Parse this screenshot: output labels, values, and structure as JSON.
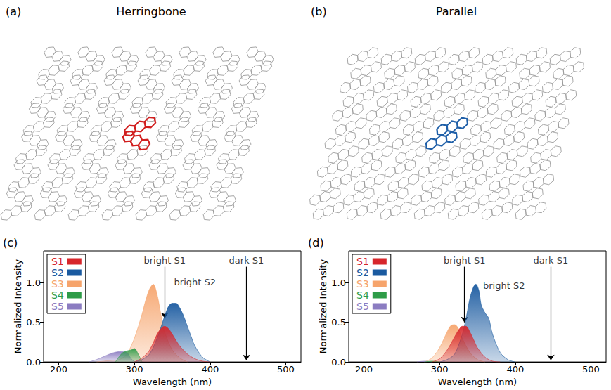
{
  "figure": {
    "panels": [
      {
        "label": "(a)",
        "title": "Herringbone"
      },
      {
        "label": "(b)",
        "title": "Parallel"
      }
    ]
  },
  "chart_data": [
    {
      "type": "area",
      "label": "(c)",
      "x_label": "Wavelength (nm)",
      "y_label": "Normalized Intensity",
      "xlim": [
        180,
        520
      ],
      "xticks": [
        200,
        300,
        400,
        500
      ],
      "ylim": [
        0,
        1.4
      ],
      "yticks": [
        {
          "value": 0,
          "label": "0.0"
        },
        0.5,
        {
          "value": 1,
          "label": "1.0"
        }
      ],
      "legend": "top-left",
      "series": [
        {
          "name": "S1",
          "color": "#d7262b",
          "x": [
            300,
            310,
            320,
            330,
            335,
            340,
            345,
            350,
            355,
            360,
            370,
            380,
            390,
            400
          ],
          "values": [
            0,
            0.05,
            0.15,
            0.35,
            0.42,
            0.45,
            0.42,
            0.35,
            0.27,
            0.2,
            0.1,
            0.04,
            0.01,
            0
          ]
        },
        {
          "name": "S2",
          "color": "#1a5aa0",
          "x": [
            300,
            310,
            320,
            330,
            340,
            345,
            350,
            355,
            360,
            365,
            370,
            375,
            380,
            390,
            400
          ],
          "values": [
            0,
            0.03,
            0.1,
            0.3,
            0.58,
            0.7,
            0.74,
            0.74,
            0.68,
            0.58,
            0.45,
            0.32,
            0.2,
            0.06,
            0
          ]
        },
        {
          "name": "S3",
          "color": "#f6a46c",
          "x": [
            250,
            270,
            280,
            290,
            300,
            310,
            315,
            320,
            325,
            330,
            335,
            340,
            350,
            360,
            370
          ],
          "values": [
            0,
            0.02,
            0.03,
            0.1,
            0.3,
            0.6,
            0.78,
            0.92,
            0.98,
            0.85,
            0.6,
            0.38,
            0.15,
            0.05,
            0
          ]
        },
        {
          "name": "S4",
          "color": "#2e9c48",
          "x": [
            275,
            280,
            285,
            290,
            295,
            300,
            305,
            310
          ],
          "values": [
            0,
            0.07,
            0.12,
            0.14,
            0.15,
            0.17,
            0.1,
            0
          ]
        },
        {
          "name": "S5",
          "color": "#8b7cc1",
          "x": [
            240,
            250,
            260,
            270,
            280,
            290,
            295,
            300
          ],
          "values": [
            0,
            0.03,
            0.07,
            0.11,
            0.13,
            0.12,
            0.05,
            0
          ]
        }
      ],
      "annotations": [
        {
          "text": "bright S1",
          "x": 340,
          "y": 1.2,
          "y_to": 0.55
        },
        {
          "text": "bright S2",
          "x": 380,
          "y": 0.93
        },
        {
          "text": "dark S1",
          "x": 448,
          "y": 1.2,
          "y_to": 0.02
        }
      ]
    },
    {
      "type": "area",
      "label": "(d)",
      "x_label": "Wavelength (nm)",
      "y_label": "Normalized Intensity",
      "xlim": [
        180,
        520
      ],
      "xticks": [
        200,
        300,
        400,
        500
      ],
      "ylim": [
        0,
        1.4
      ],
      "yticks": [
        {
          "value": 0,
          "label": "0.0"
        },
        0.5,
        {
          "value": 1,
          "label": "1.0"
        }
      ],
      "legend": "top-left",
      "series": [
        {
          "name": "S1",
          "color": "#d7262b",
          "x": [
            290,
            300,
            310,
            320,
            325,
            330,
            335,
            340,
            345,
            350,
            360,
            370,
            380
          ],
          "values": [
            0,
            0.04,
            0.15,
            0.32,
            0.4,
            0.45,
            0.45,
            0.38,
            0.28,
            0.18,
            0.06,
            0.01,
            0
          ]
        },
        {
          "name": "S2",
          "color": "#1a5aa0",
          "x": [
            300,
            310,
            320,
            330,
            335,
            340,
            345,
            348,
            352,
            355,
            360,
            365,
            370,
            380,
            390,
            400
          ],
          "values": [
            0,
            0.03,
            0.1,
            0.35,
            0.55,
            0.8,
            0.95,
            0.98,
            0.9,
            0.72,
            0.62,
            0.55,
            0.35,
            0.12,
            0.03,
            0
          ]
        },
        {
          "name": "S3",
          "color": "#f6a46c",
          "x": [
            280,
            290,
            300,
            310,
            315,
            320,
            325,
            330,
            340,
            350,
            360
          ],
          "values": [
            0,
            0.05,
            0.18,
            0.38,
            0.46,
            0.47,
            0.42,
            0.3,
            0.12,
            0.03,
            0
          ]
        },
        {
          "name": "S4",
          "color": "#2e9c48",
          "x": [
            280,
            290,
            300
          ],
          "values": [
            0,
            0.01,
            0
          ]
        },
        {
          "name": "S5",
          "color": "#8b7cc1",
          "x": [
            270,
            280,
            290
          ],
          "values": [
            0,
            0.01,
            0
          ]
        }
      ],
      "annotations": [
        {
          "text": "bright S1",
          "x": 333,
          "y": 1.2,
          "y_to": 0.5
        },
        {
          "text": "bright S2",
          "x": 385,
          "y": 0.88
        },
        {
          "text": "dark S1",
          "x": 447,
          "y": 1.2,
          "y_to": 0.02
        }
      ]
    }
  ]
}
